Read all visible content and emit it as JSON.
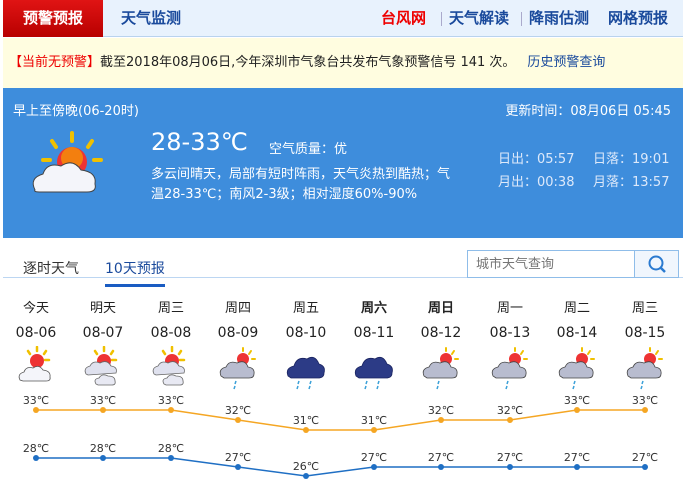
{
  "nav": {
    "active": "预警预报",
    "monitor": "天气监测",
    "right": [
      {
        "label": "台风网",
        "color": "#e00000"
      },
      {
        "label": "天气解读",
        "color": "#1a4a9c"
      },
      {
        "label": "降雨估测",
        "color": "#1a4a9c"
      },
      {
        "label": "网格预报",
        "color": "#1a4a9c"
      }
    ]
  },
  "warning": {
    "status": "【当前无预警】",
    "text": "截至2018年08月06日,今年深圳市气象台共发布气象预警信号 141 次。",
    "history_link": "历史预警查询"
  },
  "current": {
    "period": "早上至傍晚(06-20时)",
    "update": "更新时间：08月06日 05:45",
    "temp": "28-33℃",
    "air_label": "空气质量：",
    "air": "优",
    "desc1": "多云间晴天，局部有短时阵雨，天气炎热到酷热；气",
    "desc2": "温28-33℃；南风2-3级；相对湿度60%-90%",
    "sunrise": "日出：05:57",
    "sunset": "日落：19:01",
    "moonrise": "月出：00:38",
    "moonset": "月落：13:57",
    "icon": "partly-cloudy-sun"
  },
  "tabs": [
    {
      "label": "逐时天气",
      "active": false
    },
    {
      "label": "10天预报",
      "active": true
    }
  ],
  "search": {
    "placeholder": "城市天气查询",
    "icon": "search-icon"
  },
  "forecast": [
    {
      "day": "今天",
      "date": "08-06",
      "icon": "sun-cloud",
      "high": 33,
      "low": 28
    },
    {
      "day": "明天",
      "date": "08-07",
      "icon": "cloudy-sun",
      "high": 33,
      "low": 28
    },
    {
      "day": "周三",
      "date": "08-08",
      "icon": "cloudy-sun",
      "high": 33,
      "low": 28
    },
    {
      "day": "周四",
      "date": "08-09",
      "icon": "shower-sun",
      "high": 32,
      "low": 27
    },
    {
      "day": "周五",
      "date": "08-10",
      "icon": "rain",
      "high": 31,
      "low": 26
    },
    {
      "day": "周六",
      "date": "08-11",
      "icon": "rain",
      "high": 31,
      "low": 27,
      "bold": true
    },
    {
      "day": "周日",
      "date": "08-12",
      "icon": "shower-sun",
      "high": 32,
      "low": 27,
      "bold": true
    },
    {
      "day": "周一",
      "date": "08-13",
      "icon": "shower-sun",
      "high": 32,
      "low": 27
    },
    {
      "day": "周二",
      "date": "08-14",
      "icon": "shower-sun",
      "high": 33,
      "low": 27
    },
    {
      "day": "周三",
      "date": "08-15",
      "icon": "shower-sun",
      "high": 33,
      "low": 27
    }
  ],
  "colors": {
    "high": "#f5a623",
    "low": "#1f6fc4",
    "panel": "#3e8ddc"
  },
  "unit": "℃"
}
